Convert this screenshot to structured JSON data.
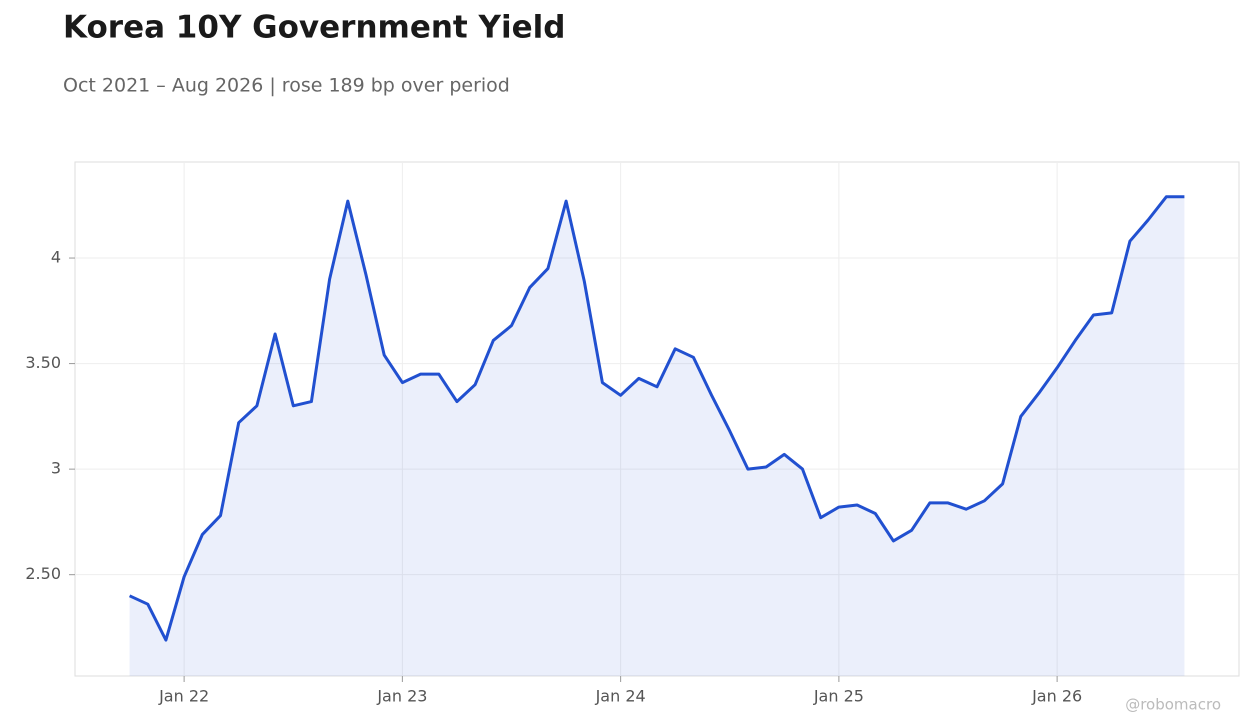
{
  "chart_data": {
    "type": "line",
    "title": "Korea 10Y Government Yield",
    "subtitle": "Oct 2021 – Aug 2026 | rose 189 bp over period",
    "watermark": "@robomacro",
    "x": [
      "2021-10",
      "2021-11",
      "2021-12",
      "2022-01",
      "2022-02",
      "2022-03",
      "2022-04",
      "2022-05",
      "2022-06",
      "2022-07",
      "2022-08",
      "2022-09",
      "2022-10",
      "2022-11",
      "2022-12",
      "2023-01",
      "2023-02",
      "2023-03",
      "2023-04",
      "2023-05",
      "2023-06",
      "2023-07",
      "2023-08",
      "2023-09",
      "2023-10",
      "2023-11",
      "2023-12",
      "2024-01",
      "2024-02",
      "2024-03",
      "2024-04",
      "2024-05",
      "2024-06",
      "2024-07",
      "2024-08",
      "2024-09",
      "2024-10",
      "2024-11",
      "2024-12",
      "2025-01",
      "2025-02",
      "2025-03",
      "2025-04",
      "2025-05",
      "2025-06",
      "2025-07",
      "2025-08",
      "2025-09",
      "2025-10",
      "2025-11",
      "2025-12",
      "2026-01",
      "2026-02",
      "2026-03",
      "2026-04",
      "2026-05",
      "2026-06",
      "2026-07",
      "2026-08"
    ],
    "series": [
      {
        "name": "Korea 10Y",
        "color": "#2150d0",
        "values": [
          2.4,
          2.36,
          2.19,
          2.49,
          2.69,
          2.78,
          3.22,
          3.3,
          3.64,
          3.3,
          3.32,
          3.9,
          4.27,
          3.92,
          3.54,
          3.41,
          3.45,
          3.45,
          3.32,
          3.4,
          3.61,
          3.68,
          3.86,
          3.95,
          4.27,
          3.89,
          3.41,
          3.35,
          3.43,
          3.39,
          3.57,
          3.53,
          3.35,
          3.18,
          3.0,
          3.01,
          3.07,
          3.0,
          2.77,
          2.82,
          2.83,
          2.79,
          2.66,
          2.71,
          2.84,
          2.84,
          2.81,
          2.85,
          2.93,
          3.25,
          3.36,
          3.48,
          3.61,
          3.73,
          3.74,
          4.08,
          4.18,
          4.29,
          4.29
        ]
      }
    ],
    "xlim": [
      "2021-07",
      "2026-11"
    ],
    "xticks": [
      {
        "value": "2022-01",
        "label": "Jan 22"
      },
      {
        "value": "2023-01",
        "label": "Jan 23"
      },
      {
        "value": "2024-01",
        "label": "Jan 24"
      },
      {
        "value": "2025-01",
        "label": "Jan 25"
      },
      {
        "value": "2026-01",
        "label": "Jan 26"
      }
    ],
    "ylim": [
      2.02,
      4.455
    ],
    "yticks": [
      {
        "value": 2.5,
        "label": "2.50"
      },
      3,
      {
        "value": 3.5,
        "label": "3.50"
      },
      4
    ],
    "grid": true,
    "area_fill": true
  }
}
